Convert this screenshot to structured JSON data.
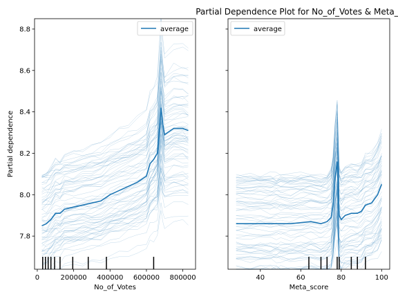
{
  "chart_data": [
    {
      "type": "line",
      "title": "",
      "xlabel": "No_of_Votes",
      "ylabel": "Partial dependence",
      "xlim": [
        -15000,
        870000
      ],
      "ylim": [
        7.64,
        8.85
      ],
      "xticks": [
        0,
        200000,
        400000,
        600000,
        800000
      ],
      "xtick_labels": [
        "0",
        "200000",
        "400000",
        "600000",
        "800000"
      ],
      "yticks": [
        7.8,
        8.0,
        8.2,
        8.4,
        8.6,
        8.8
      ],
      "ytick_labels": [
        "7.8",
        "8.0",
        "8.2",
        "8.4",
        "8.6",
        "8.8"
      ],
      "legend": {
        "entries": [
          "average"
        ],
        "placement": "upper right"
      },
      "rug_x": [
        30000,
        45000,
        60000,
        75000,
        95000,
        125000,
        195000,
        280000,
        380000,
        640000
      ],
      "average": {
        "name": "average",
        "x": [
          25000,
          50000,
          75000,
          100000,
          125000,
          150000,
          200000,
          250000,
          300000,
          350000,
          400000,
          450000,
          500000,
          550000,
          600000,
          620000,
          640000,
          660000,
          680000,
          690000,
          700000,
          750000,
          800000,
          830000
        ],
        "y": [
          7.85,
          7.86,
          7.88,
          7.91,
          7.91,
          7.93,
          7.94,
          7.95,
          7.96,
          7.97,
          8.0,
          8.02,
          8.04,
          8.06,
          8.09,
          8.15,
          8.17,
          8.2,
          8.42,
          8.34,
          8.29,
          8.32,
          8.32,
          8.31
        ]
      }
    },
    {
      "type": "line",
      "title": "Partial Dependence Plot for No_of_Votes & Meta_",
      "xlabel": "Meta_score",
      "ylabel": "",
      "xlim": [
        24,
        104
      ],
      "ylim": [
        7.64,
        8.85
      ],
      "xticks": [
        40,
        60,
        80,
        100
      ],
      "xtick_labels": [
        "40",
        "60",
        "80",
        "100"
      ],
      "yticks": [
        7.8,
        8.0,
        8.2,
        8.4,
        8.6,
        8.8
      ],
      "ytick_labels": [
        "",
        "",
        "",
        "",
        "",
        ""
      ],
      "legend": {
        "entries": [
          "average"
        ],
        "placement": "upper left"
      },
      "rug_x": [
        64,
        70,
        73,
        78,
        79,
        85,
        88,
        92
      ],
      "average": {
        "name": "average",
        "x": [
          28,
          35,
          40,
          45,
          48,
          50,
          55,
          60,
          65,
          70,
          73,
          75,
          76,
          77,
          78,
          79,
          80,
          82,
          85,
          88,
          90,
          92,
          95,
          98,
          100
        ],
        "y": [
          7.86,
          7.86,
          7.86,
          7.86,
          7.86,
          7.86,
          7.86,
          7.865,
          7.87,
          7.86,
          7.87,
          7.89,
          7.95,
          8.08,
          8.16,
          7.9,
          7.88,
          7.9,
          7.91,
          7.91,
          7.92,
          7.95,
          7.96,
          8.0,
          8.05
        ]
      }
    }
  ],
  "colors": {
    "average_line": "#1f77b4",
    "ice_lines": "#1f77b4",
    "rug": "#000000",
    "axes": "#000000",
    "background": "#ffffff"
  }
}
